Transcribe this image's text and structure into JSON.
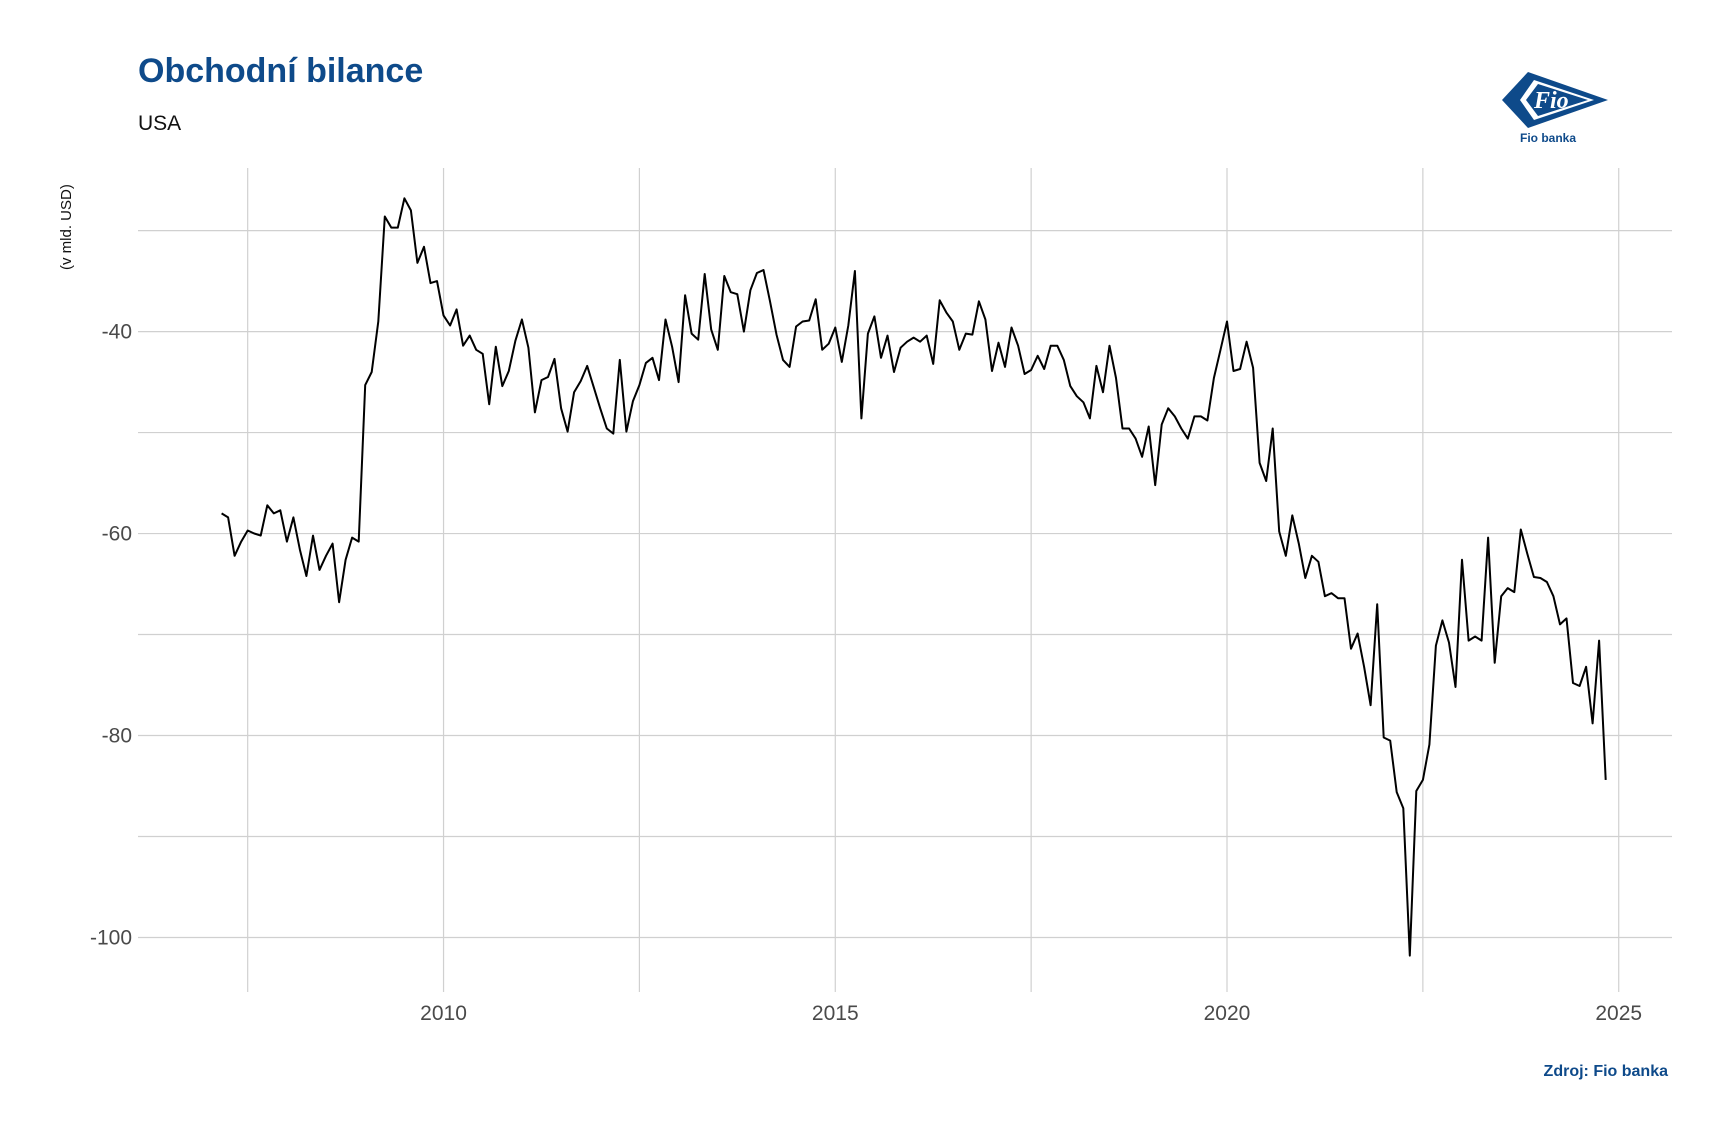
{
  "title": "Obchodní bilance",
  "subtitle": "USA",
  "brand": {
    "logo_text": "Fio",
    "name": "Fio banka",
    "color": "#0e4a8a"
  },
  "source": "Zdroj: Fio banka",
  "chart_data": {
    "type": "line",
    "title": "Obchodní bilance",
    "subtitle": "USA",
    "xlabel": "",
    "ylabel": "(v mld. USD)",
    "x_ticks": [
      2010,
      2015,
      2020,
      2025
    ],
    "y_ticks": [
      -40,
      -60,
      -80,
      -100
    ],
    "xlim": [
      2006.1,
      2025.68
    ],
    "ylim": [
      -105.4,
      -23.8
    ],
    "grid": true,
    "legend": "none",
    "line_color": "#000000",
    "series": [
      {
        "x_start": "2007-03",
        "frequency": "monthly",
        "values": [
          -58.0,
          -58.4,
          -62.2,
          -60.8,
          -59.7,
          -60.0,
          -60.2,
          -57.2,
          -58.0,
          -57.7,
          -60.8,
          -58.4,
          -61.6,
          -64.2,
          -60.2,
          -63.6,
          -62.2,
          -61.0,
          -66.8,
          -62.6,
          -60.4,
          -60.8,
          -45.3,
          -44.0,
          -39.0,
          -28.6,
          -29.7,
          -29.7,
          -26.8,
          -28.0,
          -33.2,
          -31.6,
          -35.2,
          -35.0,
          -38.4,
          -39.4,
          -37.8,
          -41.4,
          -40.4,
          -41.8,
          -42.2,
          -47.2,
          -41.5,
          -45.4,
          -43.9,
          -40.9,
          -38.8,
          -41.6,
          -48.0,
          -44.8,
          -44.5,
          -42.7,
          -47.6,
          -49.9,
          -46.0,
          -44.9,
          -43.4,
          -45.5,
          -47.6,
          -49.6,
          -50.1,
          -42.8,
          -49.9,
          -46.9,
          -45.3,
          -43.1,
          -42.6,
          -44.8,
          -38.8,
          -41.5,
          -45.0,
          -36.4,
          -40.2,
          -40.8,
          -34.3,
          -39.8,
          -41.8,
          -34.5,
          -36.1,
          -36.3,
          -40.0,
          -35.9,
          -34.2,
          -33.9,
          -37.0,
          -40.3,
          -42.8,
          -43.5,
          -39.5,
          -39.0,
          -38.9,
          -36.8,
          -41.8,
          -41.2,
          -39.6,
          -43.0,
          -39.4,
          -34.0,
          -48.6,
          -40.2,
          -38.5,
          -42.6,
          -40.4,
          -44.0,
          -41.6,
          -41.0,
          -40.6,
          -41.0,
          -40.4,
          -43.2,
          -36.9,
          -38.1,
          -39.0,
          -41.8,
          -40.2,
          -40.3,
          -37.0,
          -38.8,
          -43.9,
          -41.1,
          -43.5,
          -39.6,
          -41.4,
          -44.2,
          -43.8,
          -42.4,
          -43.7,
          -41.4,
          -41.4,
          -42.8,
          -45.4,
          -46.4,
          -47.0,
          -48.6,
          -43.4,
          -46.0,
          -41.4,
          -44.6,
          -49.6,
          -49.6,
          -50.6,
          -52.4,
          -49.4,
          -55.2,
          -49.2,
          -47.6,
          -48.4,
          -49.6,
          -50.6,
          -48.4,
          -48.4,
          -48.8,
          -44.6,
          -41.8,
          -39.0,
          -43.9,
          -43.7,
          -41.0,
          -43.6,
          -53.0,
          -54.8,
          -49.6,
          -59.8,
          -62.2,
          -58.2,
          -61.0,
          -64.4,
          -62.2,
          -62.8,
          -66.2,
          -65.9,
          -66.4,
          -66.4,
          -71.4,
          -69.9,
          -73.2,
          -77.0,
          -67.0,
          -80.2,
          -80.5,
          -85.6,
          -87.2,
          -101.8,
          -85.5,
          -84.4,
          -80.9,
          -71.1,
          -68.6,
          -70.8,
          -75.2,
          -62.6,
          -70.6,
          -70.2,
          -70.6,
          -60.4,
          -72.8,
          -66.2,
          -65.4,
          -65.8,
          -59.6,
          -62.0,
          -64.3,
          -64.4,
          -64.8,
          -66.2,
          -69.0,
          -68.4,
          -74.8,
          -75.1,
          -73.2,
          -78.8,
          -70.6,
          -84.4
        ]
      }
    ]
  }
}
